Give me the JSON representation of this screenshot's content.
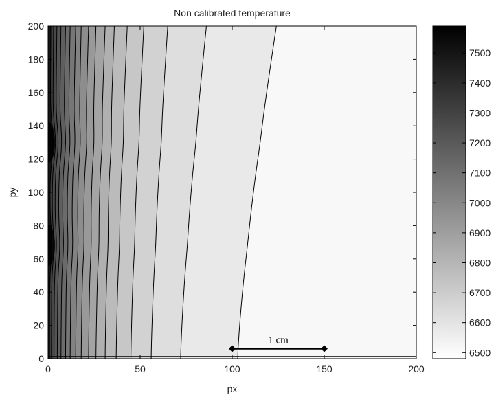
{
  "chart_data": {
    "type": "contour",
    "title": "Non calibrated temperature",
    "xlabel": "px",
    "ylabel": "py",
    "xlim": [
      0,
      200
    ],
    "ylim": [
      0,
      200
    ],
    "x_ticks": [
      0,
      50,
      100,
      150,
      200
    ],
    "y_ticks": [
      0,
      20,
      40,
      60,
      80,
      100,
      120,
      140,
      160,
      180,
      200
    ],
    "colorbar": {
      "colormap": "gray-reversed",
      "range": [
        6480,
        7590
      ],
      "ticks": [
        6500,
        6600,
        6700,
        6800,
        6900,
        7000,
        7100,
        7200,
        7300,
        7400,
        7500
      ]
    },
    "contour_levels": [
      {
        "level": 6550,
        "x_at_y0": 103,
        "x_at_y200": 124
      },
      {
        "level": 6600,
        "x_at_y0": 72,
        "x_at_y200": 86
      },
      {
        "level": 6650,
        "x_at_y0": 56,
        "x_at_y200": 65
      },
      {
        "level": 6700,
        "x_at_y0": 45,
        "x_at_y200": 52
      },
      {
        "level": 6750,
        "x_at_y0": 37,
        "x_at_y200": 43
      },
      {
        "level": 6800,
        "x_at_y0": 31,
        "x_at_y200": 36
      },
      {
        "level": 6850,
        "x_at_y0": 26,
        "x_at_y200": 31
      },
      {
        "level": 6900,
        "x_at_y0": 22,
        "x_at_y200": 26
      },
      {
        "level": 6950,
        "x_at_y0": 18,
        "x_at_y200": 22
      },
      {
        "level": 7000,
        "x_at_y0": 15,
        "x_at_y200": 18
      },
      {
        "level": 7050,
        "x_at_y0": 12,
        "x_at_y200": 15
      },
      {
        "level": 7100,
        "x_at_y0": 9.5,
        "x_at_y200": 12
      },
      {
        "level": 7150,
        "x_at_y0": 7,
        "x_at_y200": 9.5
      },
      {
        "level": 7200,
        "x_at_y0": 5,
        "x_at_y200": 7
      },
      {
        "level": 7250,
        "x_at_y0": 3.2,
        "x_at_y200": 4.8
      },
      {
        "level": 7300,
        "x_at_y0": 1.8,
        "x_at_y200": 3
      },
      {
        "level": 7350,
        "x_at_y0": 0.8,
        "x_at_y200": 1.5
      }
    ],
    "hotspots": [
      {
        "x": 0,
        "y": 130,
        "label": ""
      },
      {
        "x": 0,
        "y": 68,
        "label": ""
      }
    ],
    "annotation": {
      "text": "1 cm",
      "x1": 100,
      "x2": 150,
      "y": 6
    }
  }
}
